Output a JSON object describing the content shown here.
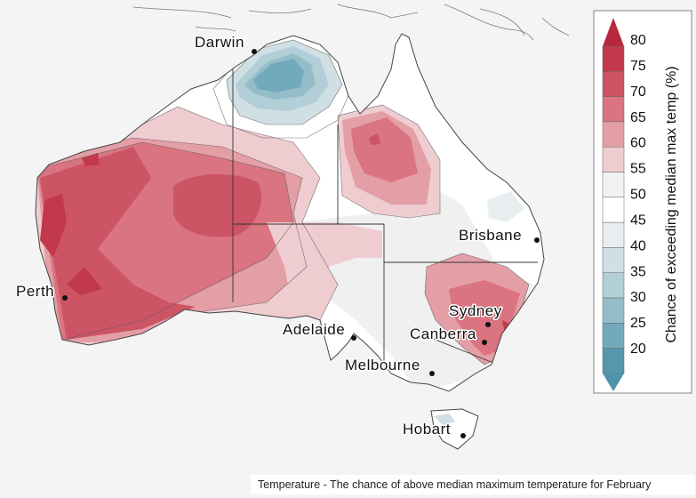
{
  "caption": "Temperature - The chance of above median maximum temperature for February",
  "legend": {
    "title": "Chance of exceeding median max temp (%)",
    "ticks": [
      "80",
      "75",
      "70",
      "65",
      "60",
      "55",
      "50",
      "45",
      "40",
      "35",
      "30",
      "25",
      "20"
    ],
    "colors": [
      "#c2394b",
      "#cc5464",
      "#d97480",
      "#e49ea6",
      "#efccd0",
      "#f2f2f2",
      "#ffffff",
      "#e8eef0",
      "#cfdfe4",
      "#b2ced6",
      "#94bdc9",
      "#73aabb",
      "#5697ae"
    ],
    "top_arrow_color": "#b8283c",
    "bottom_arrow_color": "#4f93ab"
  },
  "cities": [
    {
      "id": "darwin",
      "label": "Darwin"
    },
    {
      "id": "brisbane",
      "label": "Brisbane"
    },
    {
      "id": "perth",
      "label": "Perth"
    },
    {
      "id": "sydney",
      "label": "Sydney"
    },
    {
      "id": "adelaide",
      "label": "Adelaide"
    },
    {
      "id": "canberra",
      "label": "Canberra"
    },
    {
      "id": "melbourne",
      "label": "Melbourne"
    },
    {
      "id": "hobart",
      "label": "Hobart"
    }
  ]
}
